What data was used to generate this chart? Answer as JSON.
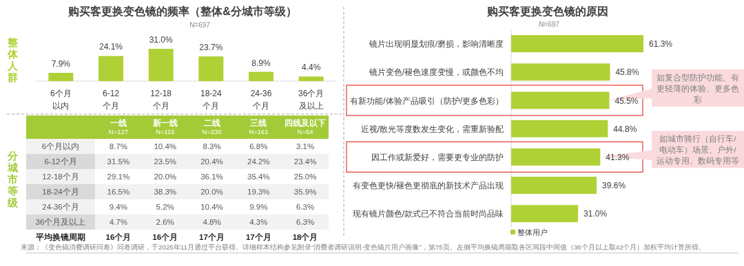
{
  "chart_data": [
    {
      "type": "bar",
      "title": "购买客更换变色镜的频率（整体&分城市等级）",
      "subtitle": "N=697",
      "ylabel": "整体人群",
      "categories": [
        "6个月以内",
        "6-12个月",
        "12-18个月",
        "18-24个月",
        "24-36个月",
        "36个月及以上"
      ],
      "values": [
        7.9,
        24.1,
        31.0,
        23.7,
        8.9,
        4.4
      ],
      "value_labels": [
        "7.9%",
        "24.1%",
        "31.0%",
        "23.7%",
        "8.9%",
        "4.4%"
      ],
      "color": "#b0d136"
    },
    {
      "type": "heatmap",
      "ylabel": "分城市等级",
      "color": "#a3cb38",
      "categories": [
        "一线\nN=127",
        "新一线\nN=115",
        "二线\nN=230",
        "三线\nN=161",
        "四线及以下\nN=64"
      ],
      "y_categories": [
        "6个月以内",
        "6-12个月",
        "12-18个月",
        "18-24个月",
        "24-36个月",
        "36个月及以上",
        "平均换镜周期"
      ],
      "cells": [
        [
          8.7,
          10.4,
          8.3,
          6.8,
          3.1
        ],
        [
          31.5,
          23.5,
          20.4,
          24.2,
          23.4
        ],
        [
          29.1,
          20.0,
          36.1,
          35.4,
          25.0
        ],
        [
          16.5,
          38.3,
          20.0,
          19.3,
          35.9
        ],
        [
          9.4,
          5.2,
          10.4,
          9.9,
          6.3
        ],
        [
          4.7,
          2.6,
          4.8,
          4.3,
          6.3
        ],
        [
          16,
          16,
          17,
          17,
          18
        ]
      ],
      "cell_labels": [
        [
          "8.7%",
          "10.4%",
          "8.3%",
          "6.8%",
          "3.1%"
        ],
        [
          "31.5%",
          "23.5%",
          "20.4%",
          "24.2%",
          "23.4%"
        ],
        [
          "29.1%",
          "20.0%",
          "36.1%",
          "35.4%",
          "25.0%"
        ],
        [
          "16.5%",
          "38.3%",
          "20.0%",
          "19.3%",
          "35.9%"
        ],
        [
          "9.4%",
          "5.2%",
          "10.4%",
          "9.9%",
          "6.3%"
        ],
        [
          "4.7%",
          "2.6%",
          "4.8%",
          "4.3%",
          "6.3%"
        ],
        [
          "16个月",
          "16个月",
          "17个月",
          "17个月",
          "18个月"
        ]
      ],
      "annotations": [
        "来源：《变色镜消费调研问卷》问卷调研，于2025年11月通过平台获得。详细样本结构参见附录“消费者调研说明-变色镜片用户画像”，第75页。左侧平均换镜周期取各区间段中间值（36个月以上取42个月）加权平均计算所得。"
      ]
    },
    {
      "type": "bar",
      "orientation": "horizontal",
      "title": "购买客更换变色镜的原因",
      "subtitle": "N=697",
      "legend": "bottom",
      "categories": [
        "镜片出现明显划痕/磨损，影响清晰度",
        "镜片变色/褪色速度变慢，或颜色不均",
        "有新功能/体验产品吸引（防护/更多色彩）",
        "近视/散光等度数发生变化，需重新验配",
        "因工作或新爱好，需要更专业的防护",
        "有变色更快/褪色更彻底的新技术产品出现",
        "现有镜片颜色/款式已不符合当前时尚品味"
      ],
      "series": [
        {
          "name": "整体用户",
          "color": "#b0d136",
          "values": [
            61.3,
            45.8,
            45.5,
            44.8,
            41.3,
            39.6,
            31.0
          ],
          "value_labels": [
            "61.3%",
            "45.8%",
            "45.5%",
            "44.8%",
            "41.3%",
            "39.6%",
            "31.0%"
          ]
        }
      ],
      "annotations": [
        {
          "text": "如复合型防护功能、有更轻薄的体验、更多色彩",
          "x": 45.5,
          "y": "有新功能/体验产品吸引（防护/更多色彩）"
        },
        {
          "text": "如城市骑行（自行车/电动车）场景、户外/运动专用、数码专用等",
          "x": 41.3,
          "y": "因工作或新爱好，需要更专业的防护"
        }
      ]
    }
  ]
}
